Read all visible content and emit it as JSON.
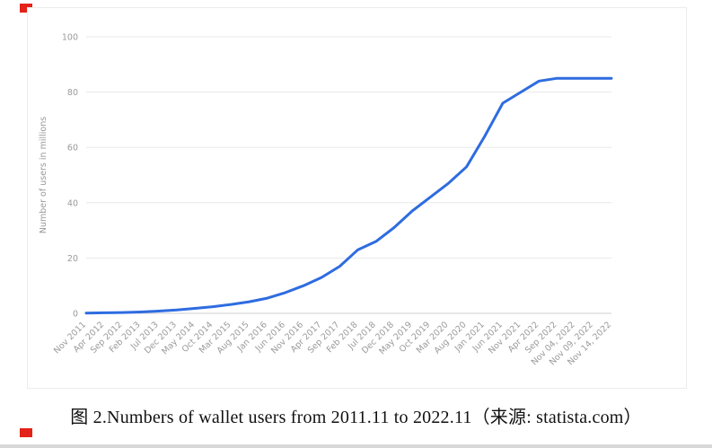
{
  "figure": {
    "caption": "图 2.Numbers of wallet users from 2011.11 to 2022.11（来源: statista.com）"
  },
  "annotation": {
    "marker_color": "#e32219"
  },
  "chart_data": {
    "type": "line",
    "title": "",
    "xlabel": "",
    "ylabel": "Number of users in millions",
    "ylim": [
      0,
      100
    ],
    "yticks": [
      0,
      20,
      40,
      60,
      80,
      100
    ],
    "grid": true,
    "legend": "none",
    "line_color": "#2e6ce0",
    "gridline_color": "#e8e8e8",
    "baseline_color": "#cccccc",
    "tick_label_color": "#9a9a9a",
    "categories": [
      "Nov 2011",
      "Apr 2012",
      "Sep 2012",
      "Feb 2013",
      "Jul 2013",
      "Dec 2013",
      "May 2014",
      "Oct 2014",
      "Mar 2015",
      "Aug 2015",
      "Jan 2016",
      "Jun 2016",
      "Nov 2016",
      "Apr 2017",
      "Sep 2017",
      "Feb 2018",
      "Jul 2018",
      "Dec 2018",
      "May 2019",
      "Oct 2019",
      "Mar 2020",
      "Aug 2020",
      "Jan 2021",
      "Jun 2021",
      "Nov 2021",
      "Apr 2022",
      "Sep 2022",
      "Nov 04, 2022",
      "Nov 09, 2022",
      "Nov 14, 2022"
    ],
    "values": [
      0.1,
      0.2,
      0.3,
      0.5,
      0.8,
      1.2,
      1.8,
      2.4,
      3.2,
      4.2,
      5.5,
      7.5,
      10,
      13,
      17,
      23,
      26,
      31,
      37,
      42,
      47,
      53,
      64,
      76,
      80,
      84,
      85,
      85,
      85,
      85
    ]
  }
}
